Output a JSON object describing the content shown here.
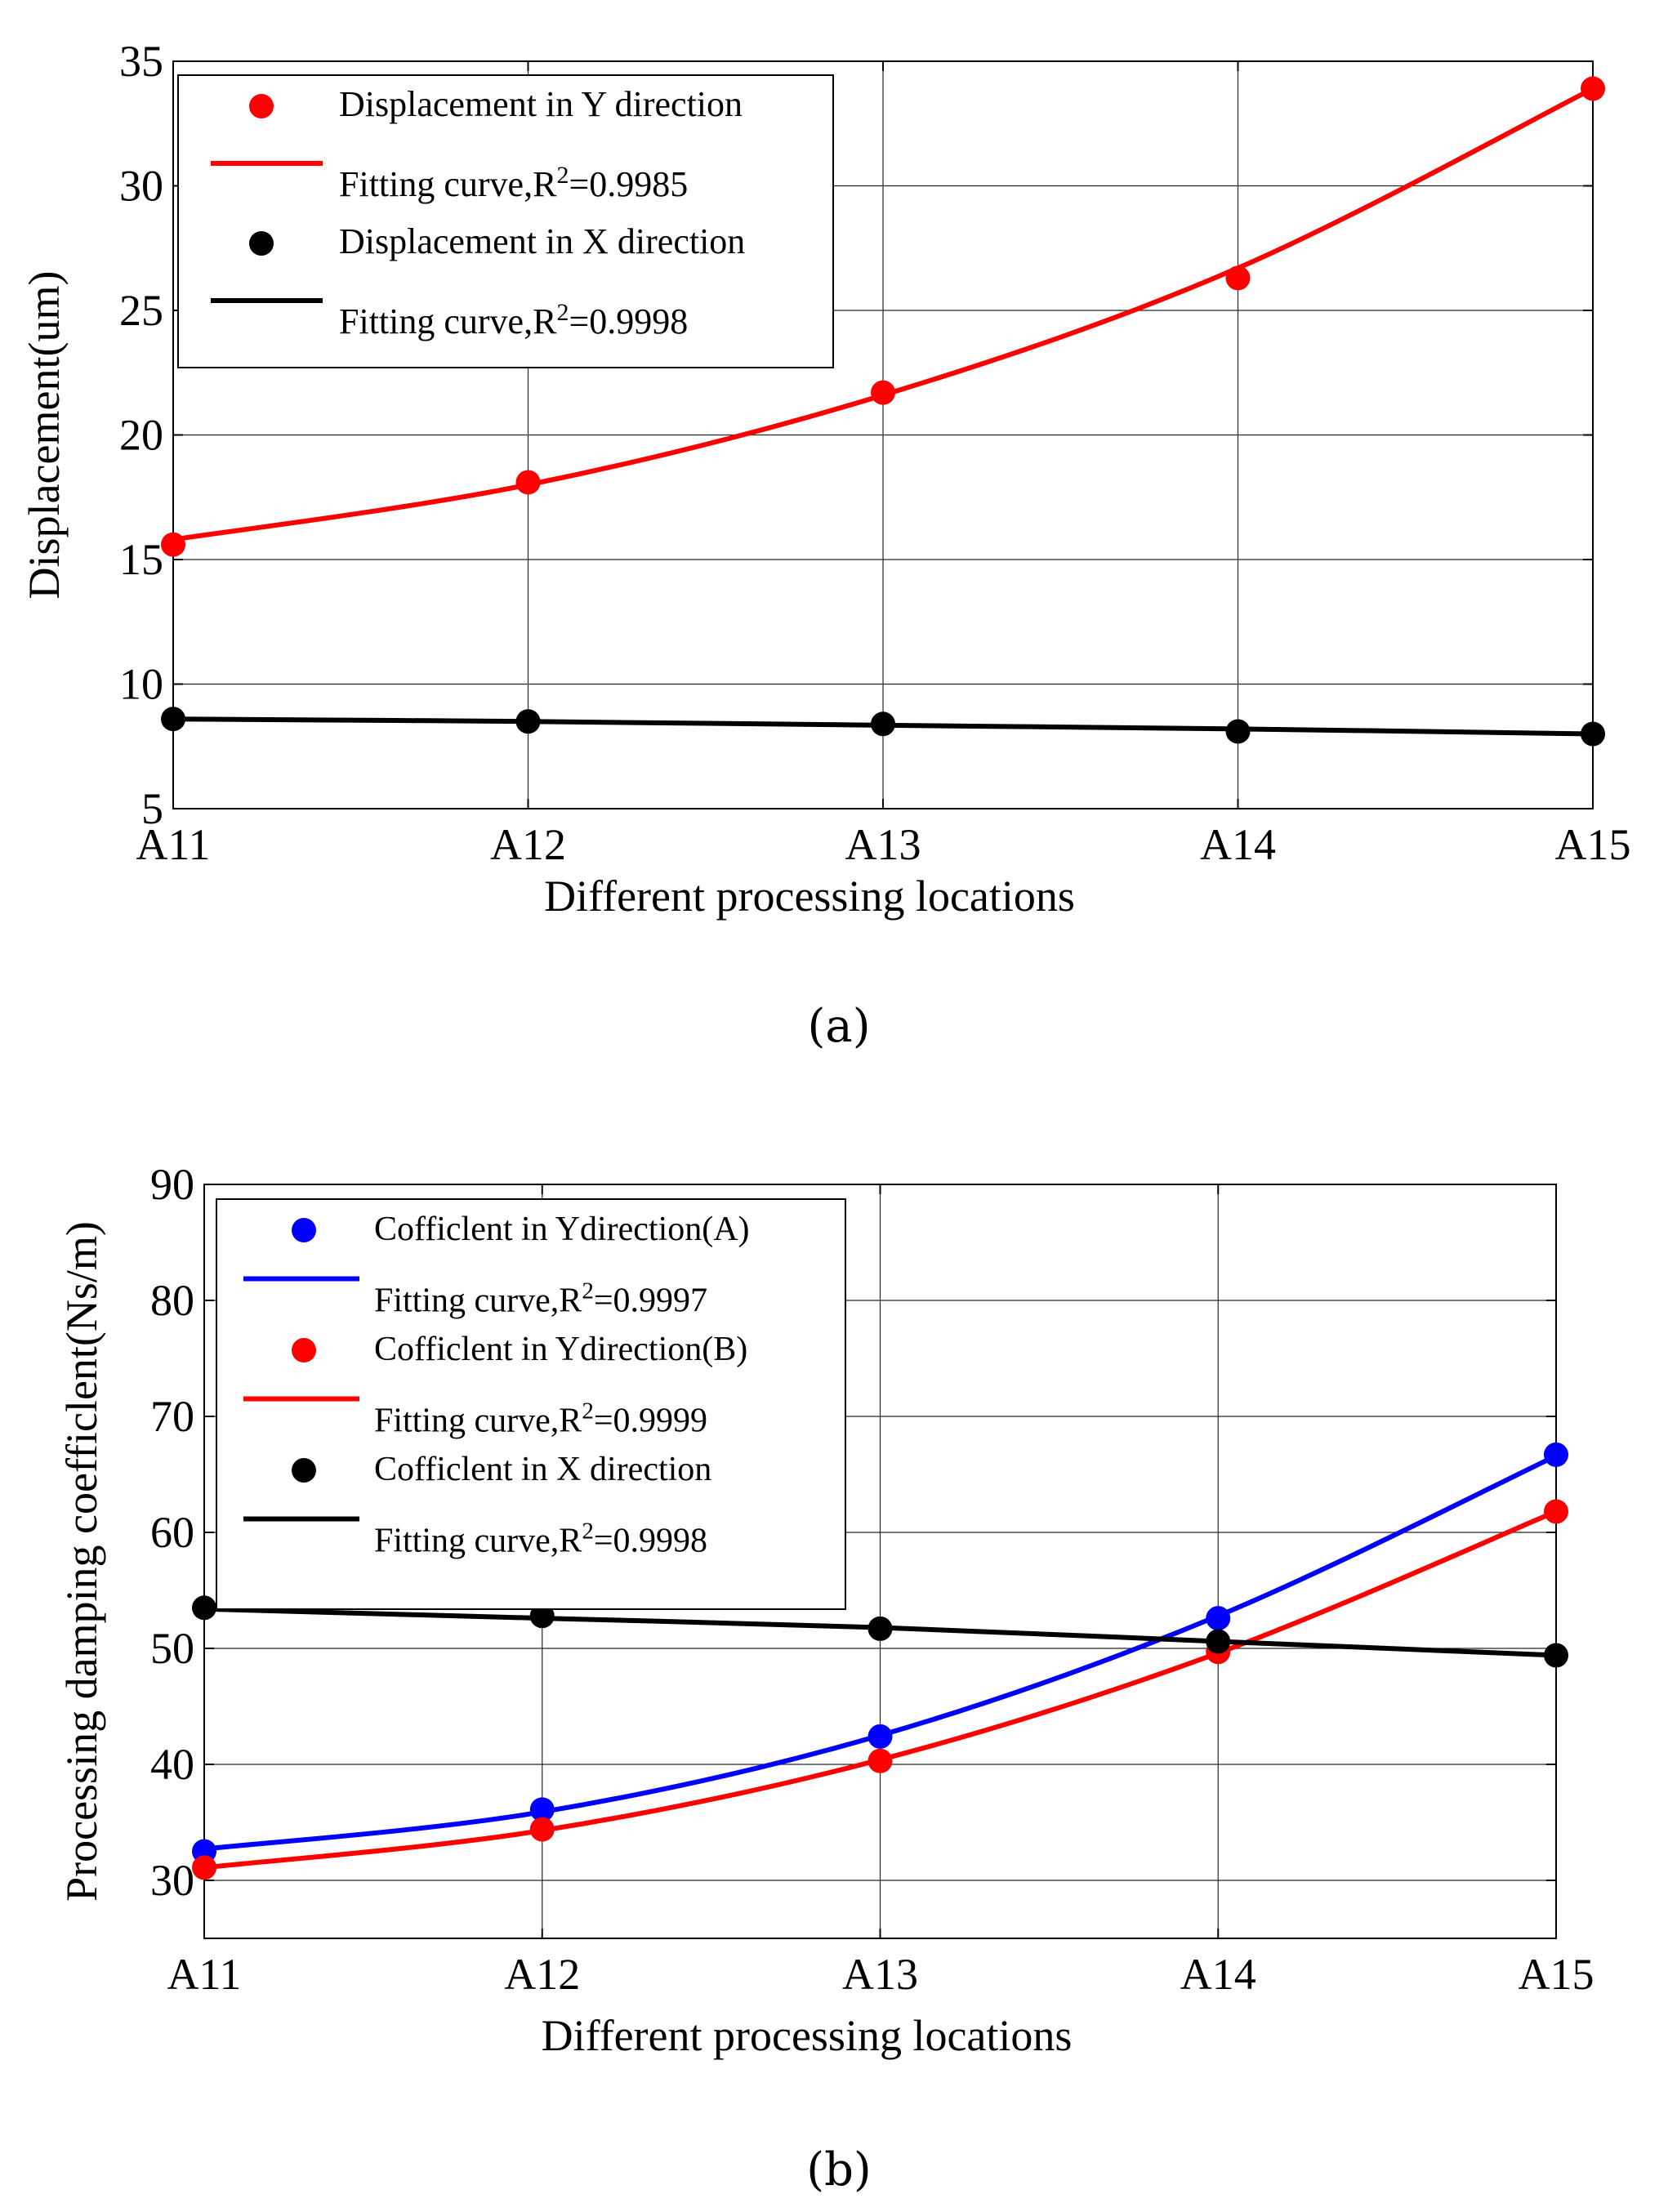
{
  "chart_data": [
    {
      "id": "a",
      "type": "line",
      "caption": "(a)",
      "title": "",
      "xlabel": "Different processing locations",
      "ylabel": "Displacement(um)",
      "categories": [
        "A11",
        "A12",
        "A13",
        "A14",
        "A15"
      ],
      "ylim": [
        5,
        35
      ],
      "yticks": [
        "5",
        "10",
        "15",
        "20",
        "25",
        "30",
        "35"
      ],
      "grid": true,
      "legend_position": "top-left",
      "series": [
        {
          "name": "Displacement in Y direction",
          "fit_label_prefix": "Fitting  curve,R",
          "fit_label_sup": "2",
          "fit_label_suffix": "=0.9985",
          "color": "#ff0000",
          "values": [
            15.6,
            18.1,
            21.7,
            26.3,
            33.9
          ],
          "fit": [
            15.8,
            18.0,
            21.6,
            26.7,
            33.9
          ]
        },
        {
          "name": "Displacement in X direction",
          "fit_label_prefix": "Fitting  curve,R",
          "fit_label_sup": "2",
          "fit_label_suffix": "=0.9998",
          "color": "#000000",
          "values": [
            8.6,
            8.5,
            8.4,
            8.1,
            8.0
          ],
          "fit": [
            8.6,
            8.5,
            8.35,
            8.2,
            8.0
          ]
        }
      ]
    },
    {
      "id": "b",
      "type": "line",
      "caption": "(b)",
      "title": "",
      "xlabel": "Different processing locations",
      "ylabel": "Processing damping coefficlent(Ns/m)",
      "categories": [
        "A11",
        "A12",
        "A13",
        "A14",
        "A15"
      ],
      "ylim": [
        25,
        90
      ],
      "yticks": [
        "30",
        "40",
        "50",
        "60",
        "70",
        "80",
        "90"
      ],
      "grid": true,
      "legend_position": "top-left",
      "series": [
        {
          "name": "Cofficlent in Ydirection(A)",
          "fit_label_prefix": "Fitting  curve,R",
          "fit_label_sup": "2",
          "fit_label_suffix": "=0.9997",
          "color": "#0000ff",
          "values": [
            32.5,
            36.1,
            42.4,
            52.6,
            66.7
          ],
          "fit": [
            32.7,
            35.9,
            42.5,
            52.8,
            66.6
          ]
        },
        {
          "name": "Cofficlent in Ydirection(B)",
          "fit_label_prefix": "Fitting  curve,R",
          "fit_label_sup": "2",
          "fit_label_suffix": "=0.9999",
          "color": "#ff0000",
          "values": [
            31.1,
            34.4,
            40.3,
            49.7,
            61.8
          ],
          "fit": [
            31.1,
            34.3,
            40.4,
            49.6,
            61.8
          ]
        },
        {
          "name": "Cofficlent in X direction",
          "fit_label_prefix": "Fitting  curve,R",
          "fit_label_sup": "2",
          "fit_label_suffix": "=0.9998",
          "color": "#000000",
          "values": [
            53.5,
            52.8,
            51.7,
            50.6,
            49.4
          ],
          "fit": [
            53.4,
            52.6,
            51.8,
            50.6,
            49.4
          ]
        }
      ]
    }
  ]
}
